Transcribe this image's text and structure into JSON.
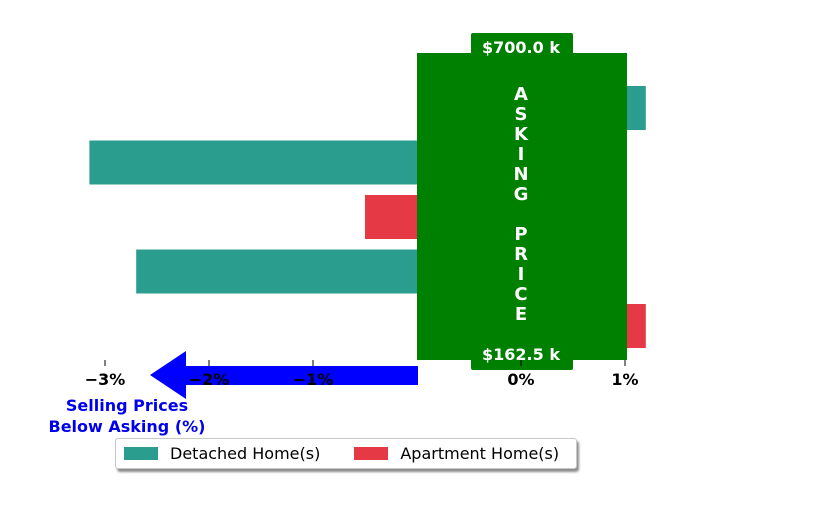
{
  "chart_data": {
    "type": "bar",
    "orientation": "horizontal",
    "series": [
      {
        "name": "Detached Home(s)",
        "color": "#2a9d8f",
        "values": [
          1.2,
          -3.15,
          -2.7
        ]
      },
      {
        "name": "Apartment Home(s)",
        "color": "#e63946",
        "values": [
          -0.5,
          1.2
        ]
      }
    ],
    "bars": [
      {
        "series": 0,
        "value": 1.2
      },
      {
        "series": 0,
        "value": -3.15
      },
      {
        "series": 1,
        "value": -0.5
      },
      {
        "series": 0,
        "value": -2.7
      },
      {
        "series": 1,
        "value": 1.2
      }
    ],
    "xlim": [
      -4,
      1
    ],
    "x_ticks": [
      -3,
      -2,
      -1,
      0,
      1
    ],
    "x_tick_labels": [
      "−3%",
      "−2%",
      "−1%",
      "0%",
      "1%"
    ],
    "grid": false,
    "legend_position": "bottom",
    "asking_price_box": {
      "color": "#008000",
      "label_vertical": "ASKING PRICE",
      "top_label": "$700.0 k",
      "bottom_label": "$162.5 k"
    },
    "below_asking": {
      "line1": "Selling Prices",
      "line2": "Below Asking (%)",
      "arrow_color": "#0000ff",
      "text_color": "#0000ee"
    }
  },
  "legend": {
    "detached_label": "Detached Home(s)",
    "detached_color": "#2a9d8f",
    "apartment_label": "Apartment Home(s)",
    "apartment_color": "#e63946"
  }
}
